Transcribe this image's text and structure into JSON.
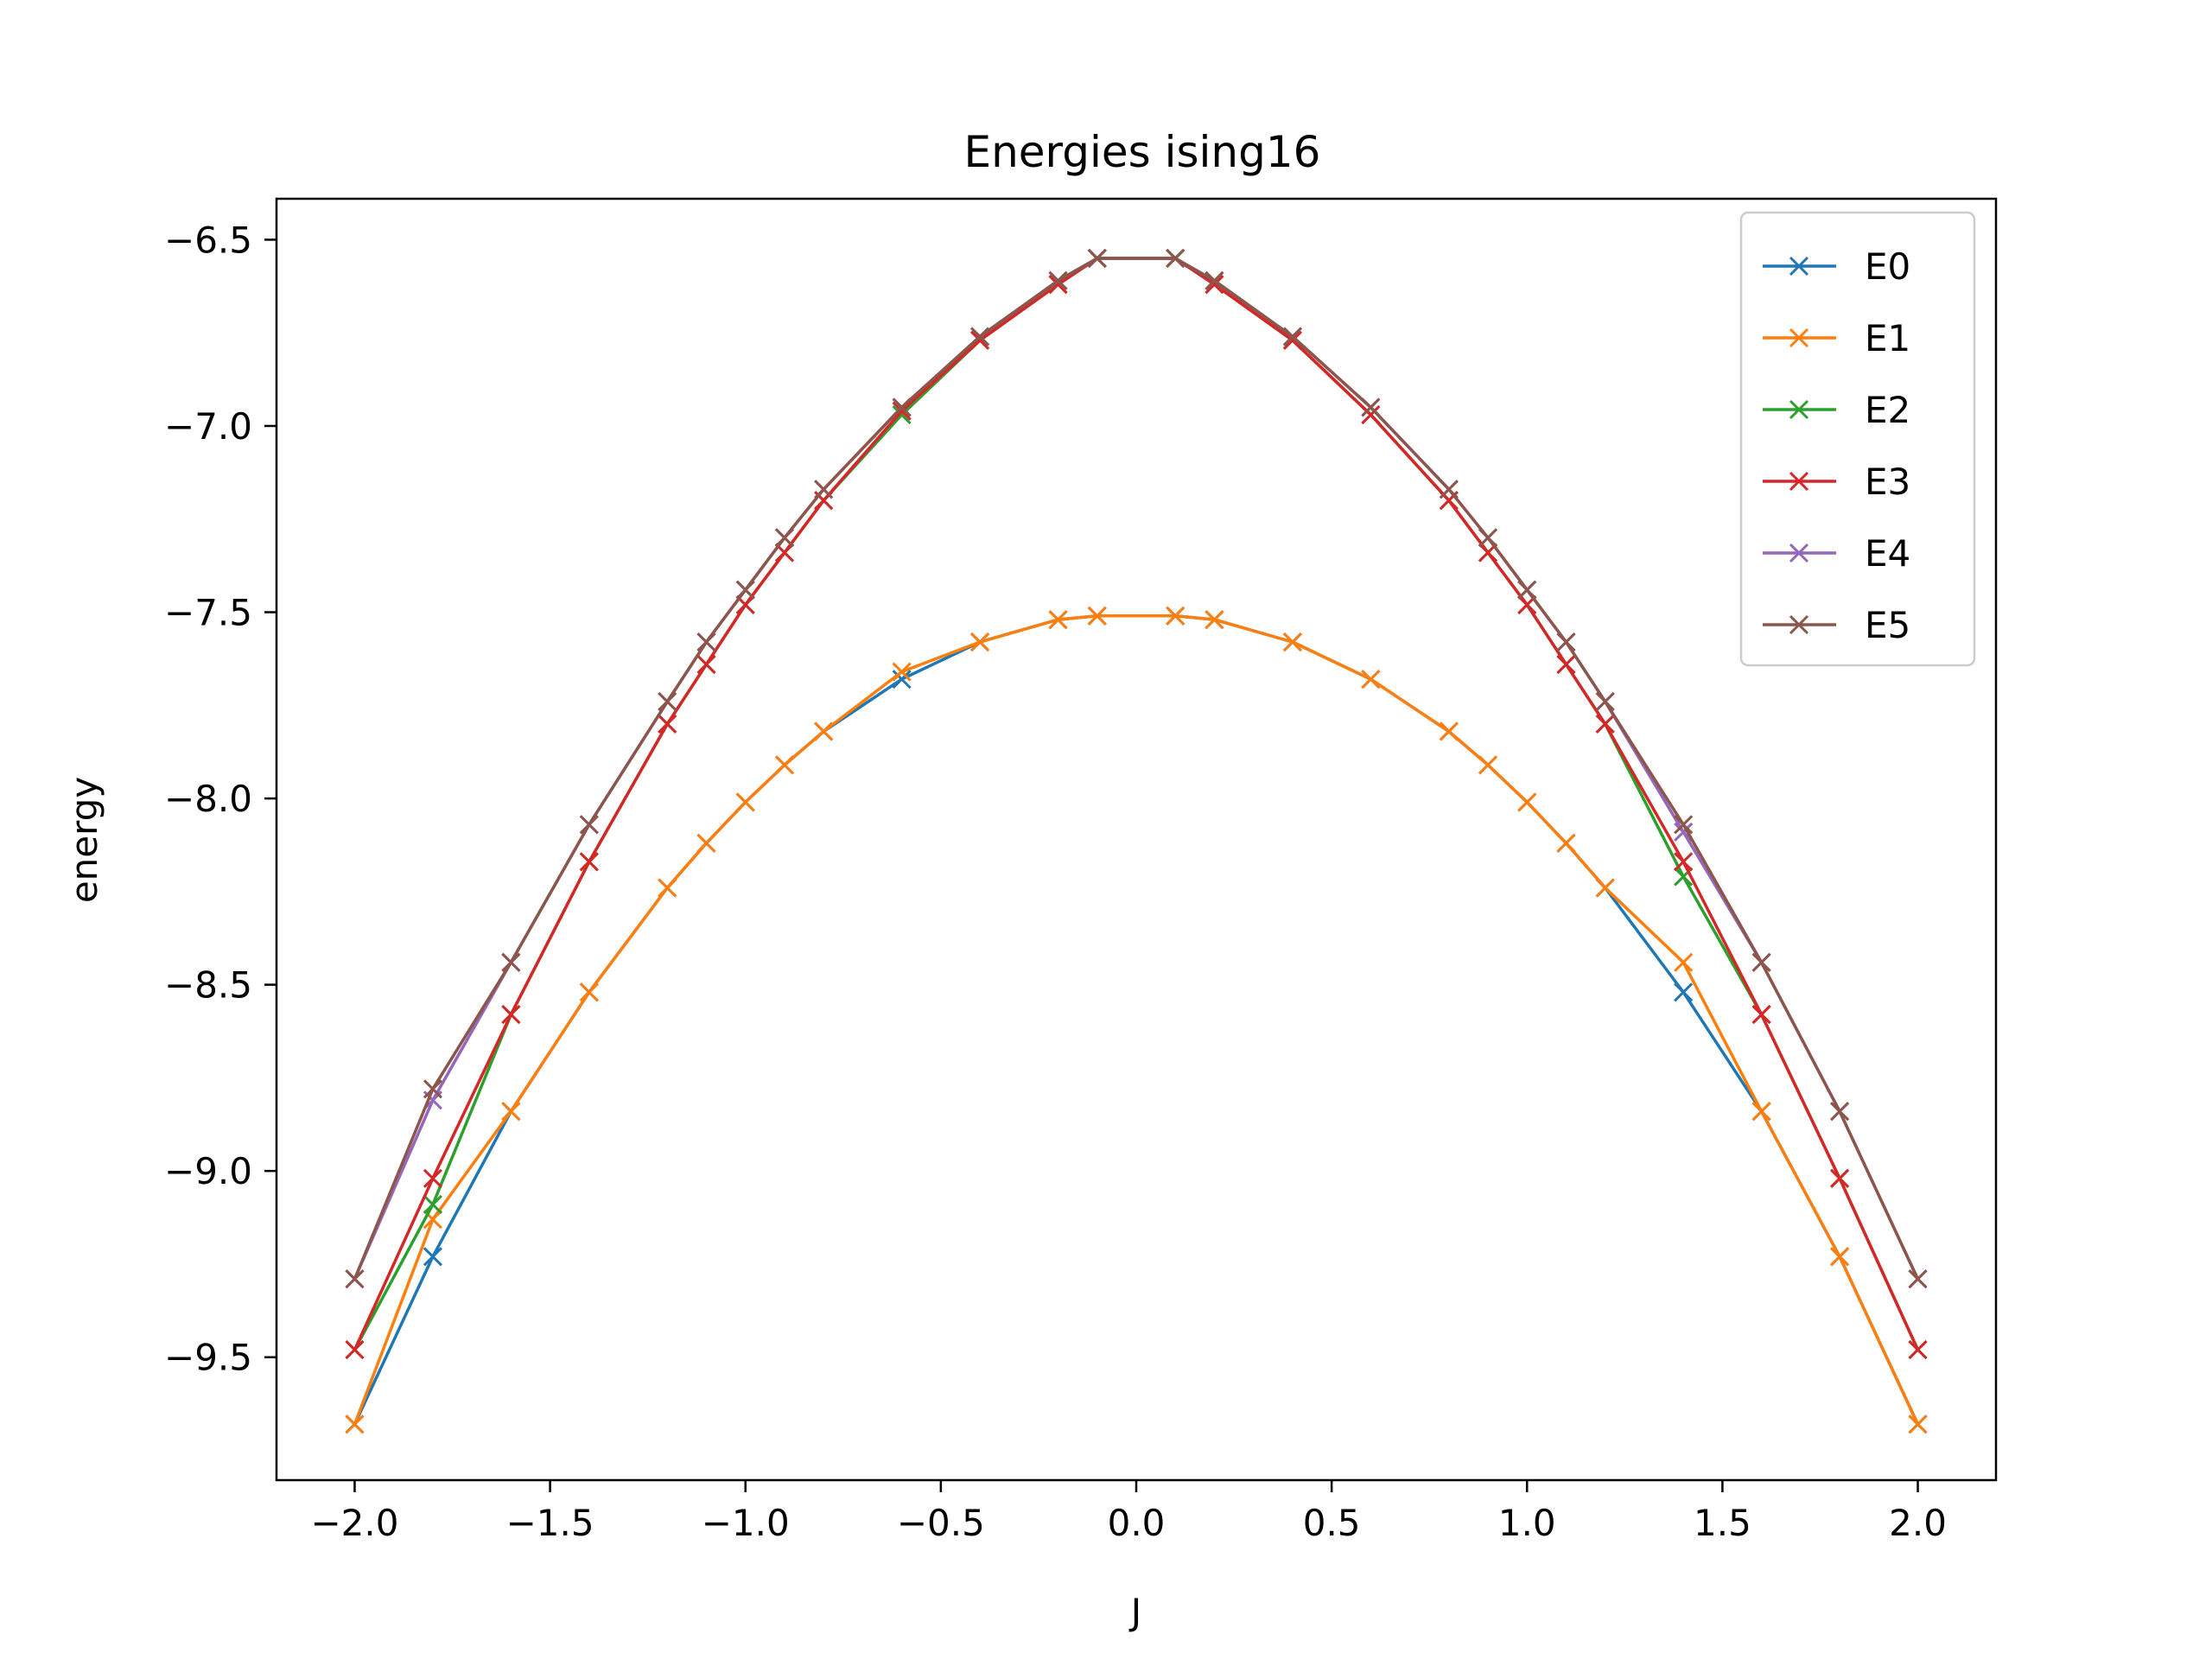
{
  "chart_data": {
    "type": "line",
    "title": "Energies ising16",
    "xlabel": "J",
    "ylabel": "energy",
    "xlim": [
      -2.2,
      2.2
    ],
    "ylim": [
      -9.83,
      -6.39
    ],
    "xticks": [
      -2.0,
      -1.5,
      -1.0,
      -0.5,
      0.0,
      0.5,
      1.0,
      1.5,
      2.0
    ],
    "xtick_labels": [
      "−2.0",
      "−1.5",
      "−1.0",
      "−0.5",
      "0.0",
      "0.5",
      "1.0",
      "1.5",
      "2.0"
    ],
    "yticks": [
      -6.5,
      -7.0,
      -7.5,
      -8.0,
      -8.5,
      -9.0,
      -9.5
    ],
    "ytick_labels": [
      "−6.5",
      "−7.0",
      "−7.5",
      "−8.0",
      "−8.5",
      "−9.0",
      "−9.5"
    ],
    "grid": false,
    "legend_position": "top-right",
    "marker": "x",
    "x": [
      -2.0,
      -1.8,
      -1.6,
      -1.4,
      -1.2,
      -1.1,
      -1.0,
      -0.9,
      -0.8,
      -0.6,
      -0.4,
      -0.2,
      -0.1,
      0.1,
      0.2,
      0.4,
      0.6,
      0.8,
      0.9,
      1.0,
      1.1,
      1.2,
      1.4,
      1.6,
      1.8,
      2.0
    ],
    "series": [
      {
        "name": "E0",
        "color": "#1f77b4",
        "values": [
          -9.68,
          -9.23,
          -8.84,
          -8.52,
          -8.24,
          -8.12,
          -8.01,
          -7.91,
          -7.82,
          -7.68,
          -7.58,
          -7.52,
          -7.51,
          -7.51,
          -7.52,
          -7.58,
          -7.68,
          -7.82,
          -7.91,
          -8.01,
          -8.12,
          -8.24,
          -8.52,
          -8.84,
          -9.23,
          -9.68
        ]
      },
      {
        "name": "E1",
        "color": "#ff7f0e",
        "values": [
          -9.68,
          -9.13,
          -8.84,
          -8.52,
          -8.24,
          -8.12,
          -8.01,
          -7.91,
          -7.82,
          -7.66,
          -7.58,
          -7.52,
          -7.51,
          -7.51,
          -7.52,
          -7.58,
          -7.68,
          -7.82,
          -7.91,
          -8.01,
          -8.12,
          -8.24,
          -8.44,
          -8.84,
          -9.23,
          -9.68
        ]
      },
      {
        "name": "E2",
        "color": "#2ca02c",
        "values": [
          -9.48,
          -9.09,
          -8.58,
          -8.17,
          -7.8,
          -7.64,
          -7.48,
          -7.34,
          -7.2,
          -6.97,
          -6.77,
          -6.62,
          -6.55,
          -6.55,
          -6.62,
          -6.77,
          -6.97,
          -7.2,
          -7.34,
          -7.48,
          -7.64,
          -7.8,
          -8.21,
          -8.58,
          -9.02,
          -9.48
        ]
      },
      {
        "name": "E3",
        "color": "#d62728",
        "values": [
          -9.48,
          -9.02,
          -8.58,
          -8.17,
          -7.8,
          -7.64,
          -7.48,
          -7.34,
          -7.2,
          -6.96,
          -6.77,
          -6.62,
          -6.55,
          -6.55,
          -6.62,
          -6.77,
          -6.97,
          -7.2,
          -7.34,
          -7.48,
          -7.64,
          -7.8,
          -8.17,
          -8.58,
          -9.02,
          -9.48
        ]
      },
      {
        "name": "E4",
        "color": "#9467bd",
        "values": [
          -9.29,
          -8.81,
          -8.44,
          -8.07,
          -7.74,
          -7.58,
          -7.44,
          -7.3,
          -7.17,
          -6.95,
          -6.76,
          -6.61,
          -6.55,
          -6.55,
          -6.61,
          -6.76,
          -6.95,
          -7.17,
          -7.3,
          -7.44,
          -7.58,
          -7.74,
          -8.09,
          -8.44,
          -8.84,
          -9.29
        ]
      },
      {
        "name": "E5",
        "color": "#8c564b",
        "values": [
          -9.29,
          -8.78,
          -8.44,
          -8.07,
          -7.74,
          -7.58,
          -7.44,
          -7.3,
          -7.17,
          -6.95,
          -6.76,
          -6.61,
          -6.55,
          -6.55,
          -6.61,
          -6.76,
          -6.95,
          -7.17,
          -7.3,
          -7.44,
          -7.58,
          -7.74,
          -8.07,
          -8.44,
          -8.84,
          -9.29
        ]
      }
    ]
  }
}
